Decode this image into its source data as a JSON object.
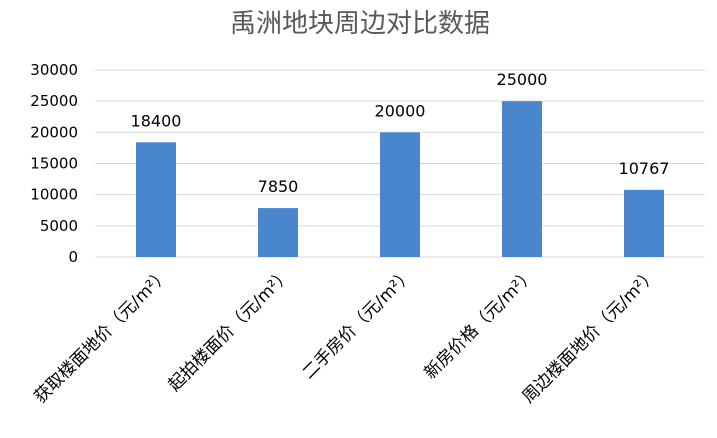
{
  "chart_data": {
    "type": "bar",
    "title": "禹洲地块周边对比数据",
    "categories": [
      "获取楼面地价（元/m²）",
      "起拍楼面价（元/m²）",
      "二手房价（元/m²）",
      "新房价格（元/m²）",
      "周边楼面地价（元/m²）"
    ],
    "values": [
      18400,
      7850,
      20000,
      25000,
      10767
    ],
    "data_labels": [
      "18400",
      "7850",
      "20000",
      "25000",
      "10767"
    ],
    "y_ticks": [
      "0",
      "5000",
      "10000",
      "15000",
      "20000",
      "25000",
      "30000"
    ],
    "ylim": [
      0,
      30000
    ],
    "grid": true,
    "legend": "none",
    "bar_color": "#4A86CE",
    "xlabel": "",
    "ylabel": ""
  }
}
